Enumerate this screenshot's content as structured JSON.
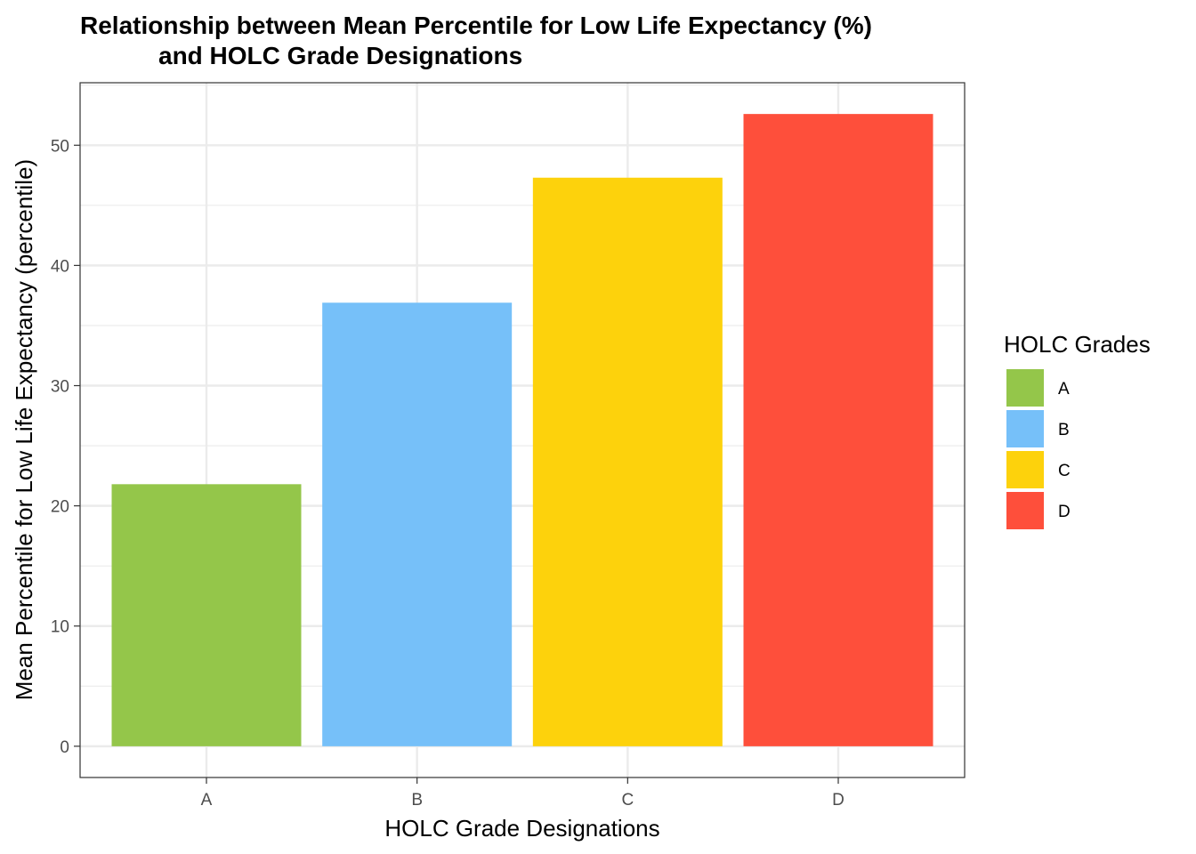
{
  "chart_data": {
    "type": "bar",
    "title_lines": [
      "Relationship between Mean Percentile for Low Life Expectancy (%)",
      "and HOLC Grade Designations"
    ],
    "xlabel": "HOLC Grade Designations",
    "ylabel": "Mean Percentile for Low Life Expectancy (percentile)",
    "categories": [
      "A",
      "B",
      "C",
      "D"
    ],
    "values": [
      21.8,
      36.9,
      47.3,
      52.6
    ],
    "colors": [
      "#94C64A",
      "#76C0F9",
      "#FDD20C",
      "#FE4F3B"
    ],
    "ylim": [
      -2.6,
      55.2
    ],
    "yticks": [
      0,
      10,
      20,
      30,
      40,
      50
    ],
    "grid": true,
    "legend": {
      "title": "HOLC Grades",
      "placement": "right",
      "items": [
        "A",
        "B",
        "C",
        "D"
      ]
    }
  }
}
